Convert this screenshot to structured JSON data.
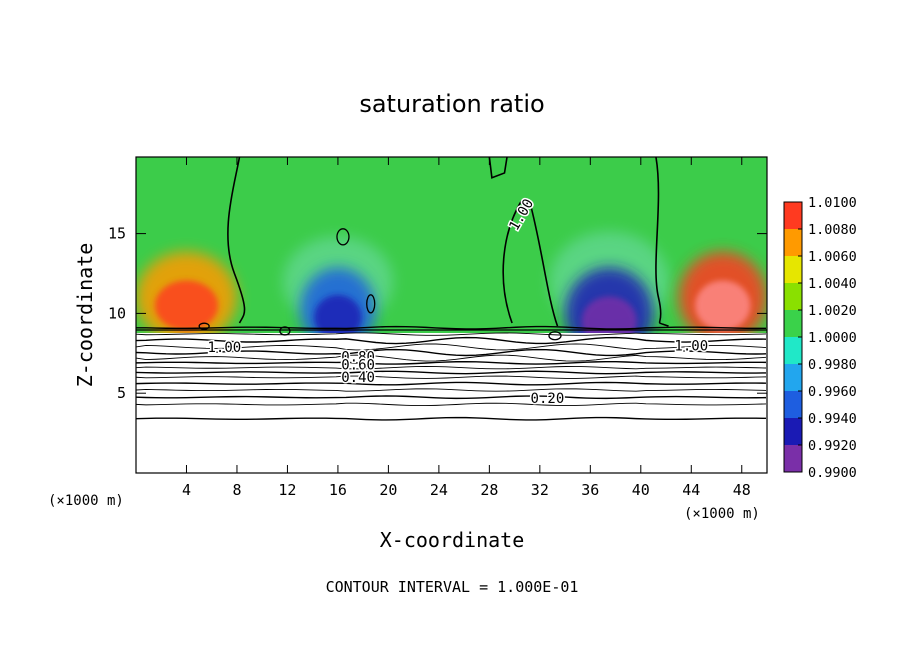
{
  "chart_data": {
    "type": "heatmap",
    "title": "saturation ratio",
    "xlabel": "X-coordinate",
    "ylabel": "Z-coordinate",
    "x_unit_label_left": "(×1000 m)",
    "x_unit_label_right": "(×1000 m)",
    "footer": "CONTOUR INTERVAL = 1.000E-01",
    "xlim": [
      0,
      50
    ],
    "ylim": [
      0,
      19.8
    ],
    "x_ticks": [
      4,
      8,
      12,
      16,
      20,
      24,
      28,
      32,
      36,
      40,
      44,
      48
    ],
    "x_tick_labels": [
      "4",
      "8",
      "12",
      "16",
      "20",
      "24",
      "28",
      "32",
      "36",
      "40",
      "44",
      "48"
    ],
    "y_ticks": [
      5,
      10,
      15
    ],
    "y_tick_labels": [
      "5",
      "10",
      "15"
    ],
    "colorbar": {
      "values": [
        0.99,
        0.992,
        0.994,
        0.996,
        0.998,
        1.0,
        1.002,
        1.004,
        1.006,
        1.008,
        1.01
      ],
      "labels": [
        "0.9900",
        "0.9920",
        "0.9940",
        "0.9960",
        "0.9980",
        "1.0000",
        "1.0020",
        "1.0040",
        "1.0060",
        "1.0080",
        "1.0100"
      ],
      "colors": [
        "#7a2fa8",
        "#1a1ab4",
        "#1e5ee0",
        "#22a6ee",
        "#20e8c8",
        "#3ad24a",
        "#8ae000",
        "#e6e600",
        "#ff9a00",
        "#ff3a20",
        "#ff8c8c"
      ]
    },
    "contour_labels": [
      {
        "text": "1.00",
        "x": 30.5,
        "z": 16.2
      },
      {
        "text": "1.00",
        "x": 7.0,
        "z": 7.9
      },
      {
        "text": "1.00",
        "x": 44.0,
        "z": 8.0
      },
      {
        "text": "0.80",
        "x": 17.6,
        "z": 7.3
      },
      {
        "text": "0.60",
        "x": 17.6,
        "z": 6.8
      },
      {
        "text": "0.40",
        "x": 17.6,
        "z": 6.0
      },
      {
        "text": "0.20",
        "x": 32.6,
        "z": 4.7
      }
    ],
    "field_regions": [
      {
        "region": "upper-left corner",
        "x_range": [
          0,
          8
        ],
        "z_range": [
          9,
          14
        ],
        "value": 1.006
      },
      {
        "region": "upper-right corner",
        "x_range": [
          43,
          50
        ],
        "z_range": [
          9,
          14
        ],
        "value": 1.008
      },
      {
        "region": "dry plume near x=16",
        "x_range": [
          13,
          19
        ],
        "z_range": [
          8.5,
          13
        ],
        "value": 0.994
      },
      {
        "region": "dry plume near x=38",
        "x_range": [
          34,
          41
        ],
        "z_range": [
          8,
          13
        ],
        "value": 0.992
      },
      {
        "region": "background aloft",
        "x_range": [
          0,
          50
        ],
        "z_range": [
          9,
          19.8
        ],
        "value": 1.0
      }
    ]
  }
}
